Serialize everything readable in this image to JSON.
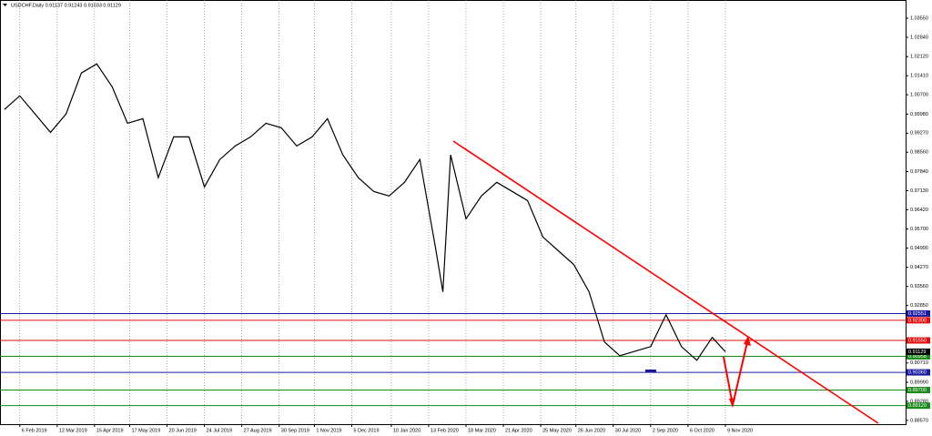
{
  "chart_data": {
    "type": "line",
    "title": "USDCHF,Daily  0.91137 0.91243 0.91033 0.91129",
    "x": [
      "2019-01-23",
      "2019-02-06",
      "2019-02-20",
      "2019-03-06",
      "2019-03-20",
      "2019-04-03",
      "2019-04-17",
      "2019-05-01",
      "2019-05-15",
      "2019-05-29",
      "2019-06-12",
      "2019-06-26",
      "2019-07-10",
      "2019-07-24",
      "2019-08-07",
      "2019-08-21",
      "2019-09-04",
      "2019-09-18",
      "2019-10-02",
      "2019-10-16",
      "2019-10-30",
      "2019-11-13",
      "2019-11-27",
      "2019-12-11",
      "2019-12-25",
      "2020-01-08",
      "2020-01-22",
      "2020-02-05",
      "2020-02-19",
      "2020-02-26",
      "2020-03-04",
      "2020-03-18",
      "2020-04-01",
      "2020-04-15",
      "2020-04-29",
      "2020-05-13",
      "2020-05-27",
      "2020-06-10",
      "2020-06-24",
      "2020-07-08",
      "2020-07-22",
      "2020-08-05",
      "2020-08-19",
      "2020-09-02",
      "2020-09-16",
      "2020-09-30",
      "2020-10-14",
      "2020-10-28",
      "2020-11-09"
    ],
    "series": [
      {
        "name": "USDCHF",
        "color": "#000000",
        "values": [
          1.0015,
          1.0066,
          0.9998,
          0.993,
          0.9998,
          1.0151,
          1.0185,
          1.01,
          0.9964,
          0.9981,
          0.9761,
          0.9913,
          0.9913,
          0.9727,
          0.9829,
          0.9879,
          0.9913,
          0.9964,
          0.9947,
          0.9879,
          0.9913,
          0.9981,
          0.9846,
          0.9761,
          0.971,
          0.9693,
          0.9744,
          0.9829,
          0.9506,
          0.9336,
          0.9846,
          0.9608,
          0.9693,
          0.9744,
          0.971,
          0.9676,
          0.954,
          0.9489,
          0.9438,
          0.9336,
          0.9149,
          0.9098,
          0.9115,
          0.9132,
          0.9251,
          0.9132,
          0.9081,
          0.9166,
          0.91129
        ]
      }
    ],
    "xlim": [
      "2019-01-19",
      "2021-04-22"
    ],
    "xticks": [
      {
        "value": "2019-02-06",
        "label": "6 Feb 2019"
      },
      {
        "value": "2019-03-12",
        "label": "12 Mar 2019"
      },
      {
        "value": "2019-04-15",
        "label": "15 Apr 2019"
      },
      {
        "value": "2019-05-17",
        "label": "17 May 2019"
      },
      {
        "value": "2019-06-20",
        "label": "20 Jun 2019"
      },
      {
        "value": "2019-07-24",
        "label": "24 Jul 2019"
      },
      {
        "value": "2019-08-27",
        "label": "27 Aug 2019"
      },
      {
        "value": "2019-09-30",
        "label": "30 Sep 2019"
      },
      {
        "value": "2019-11-01",
        "label": "1 Nov 2019"
      },
      {
        "value": "2019-12-05",
        "label": "5 Dec 2019"
      },
      {
        "value": "2020-01-10",
        "label": "10 Jan 2020"
      },
      {
        "value": "2020-02-13",
        "label": "13 Feb 2020"
      },
      {
        "value": "2020-03-18",
        "label": "18 Mar 2020"
      },
      {
        "value": "2020-04-21",
        "label": "21 Apr 2020"
      },
      {
        "value": "2020-05-25",
        "label": "25 May 2020"
      },
      {
        "value": "2020-06-26",
        "label": "26 Jun 2020"
      },
      {
        "value": "2020-07-30",
        "label": "30 Jul 2020"
      },
      {
        "value": "2020-09-02",
        "label": "2 Sep 2020"
      },
      {
        "value": "2020-10-06",
        "label": "6 Oct 2020"
      },
      {
        "value": "2020-11-09",
        "label": "9 Nov 2020"
      }
    ],
    "ylim": [
      0.8843,
      1.0423
    ],
    "yticks": [
      {
        "value": 1.0355,
        "label": "1.03550"
      },
      {
        "value": 1.0284,
        "label": "1.02840"
      },
      {
        "value": 1.0212,
        "label": "1.02120"
      },
      {
        "value": 1.0141,
        "label": "1.01410"
      },
      {
        "value": 1.007,
        "label": "1.00700"
      },
      {
        "value": 0.9998,
        "label": "0.99980"
      },
      {
        "value": 0.9927,
        "label": "0.99270"
      },
      {
        "value": 0.9856,
        "label": "0.98560"
      },
      {
        "value": 0.9784,
        "label": "0.97840"
      },
      {
        "value": 0.9713,
        "label": "0.97130"
      },
      {
        "value": 0.9642,
        "label": "0.96420"
      },
      {
        "value": 0.957,
        "label": "0.95700"
      },
      {
        "value": 0.9499,
        "label": "0.94990"
      },
      {
        "value": 0.9427,
        "label": "0.94270"
      },
      {
        "value": 0.9356,
        "label": "0.93560"
      },
      {
        "value": 0.9285,
        "label": "0.92850"
      },
      {
        "value": 0.9071,
        "label": "0.90710"
      },
      {
        "value": 0.8999,
        "label": "0.89990"
      },
      {
        "value": 0.8928,
        "label": "0.89280"
      },
      {
        "value": 0.8857,
        "label": "0.88570"
      }
    ],
    "grid": true,
    "levels": [
      {
        "value": 0.92551,
        "label": "0.92551",
        "color": "#1a1aa0"
      },
      {
        "value": 0.923,
        "label": "0.92300",
        "color": "#e01010"
      },
      {
        "value": 0.9155,
        "label": "0.91550",
        "color": "#e01010"
      },
      {
        "value": 0.90958,
        "label": "0.90958",
        "color": "#1a8a1a"
      },
      {
        "value": 0.9036,
        "label": "0.90360",
        "color": "#1a1aa0"
      },
      {
        "value": 0.897,
        "label": "0.89700",
        "color": "#1a8a1a"
      },
      {
        "value": 0.8912,
        "label": "0.89120",
        "color": "#1a8a1a"
      }
    ],
    "current_price": {
      "value": 0.91129,
      "label": "0.91129",
      "color": "#000000"
    }
  }
}
